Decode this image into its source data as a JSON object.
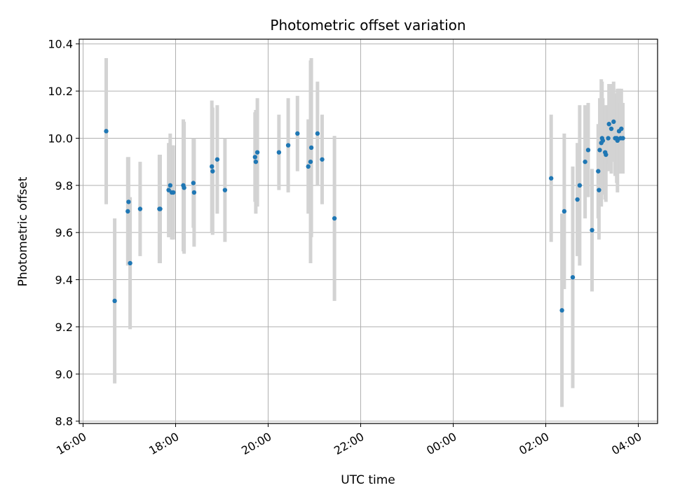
{
  "chart_data": {
    "type": "scatter",
    "title": "Photometric offset variation",
    "xlabel": "UTC time",
    "ylabel": "Photometric offset",
    "grid": true,
    "ylim": [
      8.79,
      10.42
    ],
    "xlim": [
      "15:55",
      "28:25"
    ],
    "y_ticks": [
      "8.8",
      "9.0",
      "9.2",
      "9.4",
      "9.6",
      "9.8",
      "10.0",
      "10.2",
      "10.4"
    ],
    "x_ticks": [
      "16:00",
      "18:00",
      "20:00",
      "22:00",
      "00:00",
      "02:00",
      "04:00"
    ],
    "colors": {
      "point": "#1f77b4",
      "errorbar": "#d3d3d3",
      "grid": "#b0b0b0"
    },
    "series": [
      {
        "x": [
          "16:30",
          "16:41",
          "16:58",
          "16:59",
          "17:01",
          "17:14",
          "17:39",
          "17:40",
          "17:51",
          "17:53",
          "17:55",
          "17:57",
          "18:10",
          "18:11",
          "18:23",
          "18:24",
          "18:47",
          "18:48",
          "18:54",
          "19:04",
          "19:43",
          "19:44",
          "19:46",
          "20:14",
          "20:26",
          "20:38",
          "20:52",
          "20:55",
          "20:56",
          "21:04",
          "21:10",
          "21:26",
          "02:07",
          "02:21",
          "02:24",
          "02:35",
          "02:41",
          "02:44",
          "02:51",
          "02:55",
          "03:00",
          "03:08",
          "03:09",
          "03:10",
          "03:12",
          "03:13",
          "03:14",
          "03:17",
          "03:18",
          "03:21",
          "03:22",
          "03:25",
          "03:28",
          "03:30",
          "03:32",
          "03:33",
          "03:35",
          "03:37",
          "03:38",
          "03:40"
        ],
        "y": [
          10.03,
          9.31,
          9.69,
          9.73,
          9.47,
          9.7,
          9.7,
          9.7,
          9.78,
          9.8,
          9.77,
          9.77,
          9.8,
          9.79,
          9.81,
          9.77,
          9.88,
          9.86,
          9.91,
          9.78,
          9.92,
          9.9,
          9.94,
          9.94,
          9.97,
          10.02,
          9.88,
          9.9,
          9.96,
          10.02,
          9.91,
          9.66,
          9.83,
          9.27,
          9.69,
          9.41,
          9.74,
          9.8,
          9.9,
          9.95,
          9.61,
          9.86,
          9.78,
          9.95,
          9.98,
          10.0,
          9.99,
          9.94,
          9.93,
          10.0,
          10.06,
          10.04,
          10.07,
          10.0,
          10.0,
          9.99,
          10.03,
          10.0,
          10.04,
          10.0
        ],
        "yerr": [
          0.31,
          0.35,
          0.23,
          0.19,
          0.28,
          0.2,
          0.23,
          0.23,
          0.2,
          0.22,
          0.2,
          0.2,
          0.28,
          0.28,
          0.19,
          0.23,
          0.28,
          0.27,
          0.23,
          0.22,
          0.19,
          0.22,
          0.23,
          0.16,
          0.2,
          0.16,
          0.2,
          0.43,
          0.38,
          0.22,
          0.19,
          0.35,
          0.27,
          0.41,
          0.33,
          0.47,
          0.24,
          0.34,
          0.24,
          0.2,
          0.26,
          0.2,
          0.21,
          0.22,
          0.27,
          0.24,
          0.18,
          0.2,
          0.2,
          0.14,
          0.17,
          0.19,
          0.17,
          0.16,
          0.19,
          0.22,
          0.18,
          0.15,
          0.17,
          0.15
        ]
      }
    ]
  }
}
